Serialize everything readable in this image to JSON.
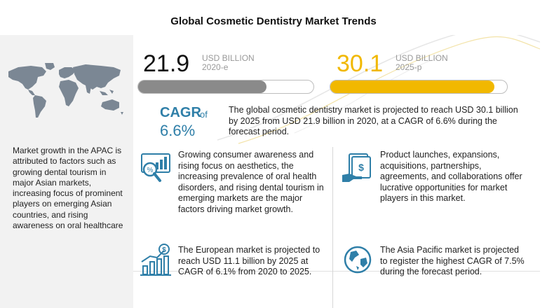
{
  "title": "Global Cosmetic Dentistry Market Trends",
  "left_panel": {
    "text": "Market growth in the APAC is attributed to factors such as growing dental tourism in major Asian markets, increasing focus of prominent players on emerging Asian countries, and rising awareness on oral healthcare"
  },
  "kpis": {
    "y2020": {
      "value": "21.9",
      "unit": "USD BILLION",
      "year": "2020-e",
      "bar_fill_fraction": 0.73
    },
    "y2025": {
      "value": "30.1",
      "unit": "USD BILLION",
      "year": "2025-p",
      "bar_fill_fraction": 0.93
    }
  },
  "cagr": {
    "label": "CAGR",
    "of": "of",
    "value": "6.6%",
    "summary": "The global cosmetic dentistry market is projected to reach USD 30.1 billion by 2025 from USD 21.9 billion in 2020, at a CAGR of 6.6% during the forecast period."
  },
  "cells": {
    "consumer": "Growing consumer awareness and rising focus on aesthetics, the increasing prevalence of oral health disorders, and rising dental tourism in emerging markets are the major factors driving market growth.",
    "launch": "Product launches, expansions, acquisitions, partnerships, agreements, and collaborations offer lucrative opportunities for market players in this market.",
    "europe": "The European market is projected to reach USD 11.1 billion by 2025 at CAGR of 6.1% from 2020 to 2025.",
    "apac": "The Asia Pacific market is projected to register the highest CAGR of 7.5% during the forecast period."
  },
  "colors": {
    "accent_blue": "#2f7fa8",
    "accent_yellow": "#f1b800",
    "bar_gray": "#8a8a8a"
  },
  "icons": {
    "map": "world-map-icon",
    "consumer": "magnifier-chart-icon",
    "launch": "money-hand-icon",
    "europe": "bar-chart-dollar-icon",
    "apac": "globe-icon"
  }
}
